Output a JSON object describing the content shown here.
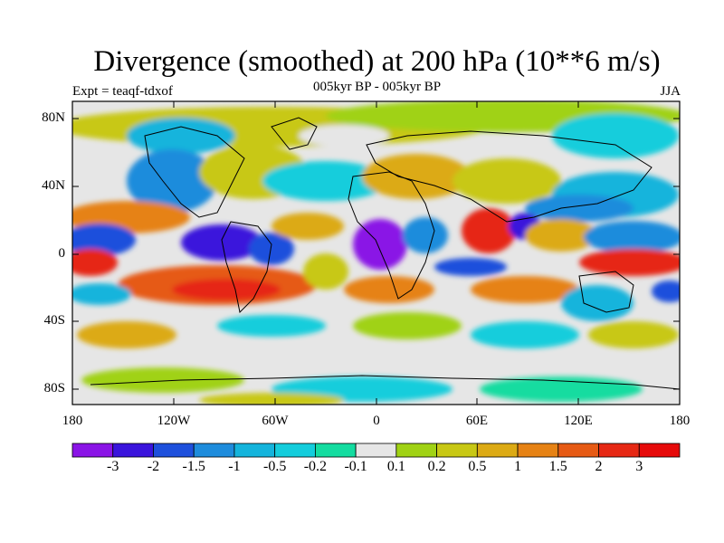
{
  "title": "Divergence (smoothed) at 200 hPa (10**6 m/s)",
  "subtitle": "005kyr BP - 005kyr BP",
  "experiment_label": "Expt = teaqf-tdxof",
  "season": "JJA",
  "y_axis_labels": [
    "80N",
    "40N",
    "0",
    "40S",
    "80S"
  ],
  "x_axis_labels": [
    "180",
    "120W",
    "60W",
    "0",
    "60E",
    "120E",
    "180"
  ],
  "colorbar": {
    "labels": [
      "-3",
      "-2",
      "-1.5",
      "-1",
      "-0.5",
      "-0.2",
      "-0.1",
      "0.1",
      "0.2",
      "0.5",
      "1",
      "1.5",
      "2",
      "3"
    ],
    "colors": [
      "#8a14e6",
      "#3a14dc",
      "#1e50dc",
      "#1e8cdc",
      "#14b4dc",
      "#14cddc",
      "#14dca0",
      "#e6e6e6",
      "#a0d214",
      "#c8c814",
      "#dcaa14",
      "#e68214",
      "#e65a14",
      "#e62814",
      "#e60a0a"
    ]
  },
  "chart_data": {
    "type": "heatmap",
    "title": "Divergence (smoothed) at 200 hPa (10**6 m/s)",
    "subtitle": "005kyr BP - 005kyr BP",
    "season": "JJA",
    "x_range": [
      -180,
      180
    ],
    "y_range": [
      -90,
      90
    ],
    "levels": [
      -3,
      -2,
      -1.5,
      -1,
      -0.5,
      -0.2,
      -0.1,
      0.1,
      0.2,
      0.5,
      1,
      1.5,
      2,
      3
    ]
  }
}
